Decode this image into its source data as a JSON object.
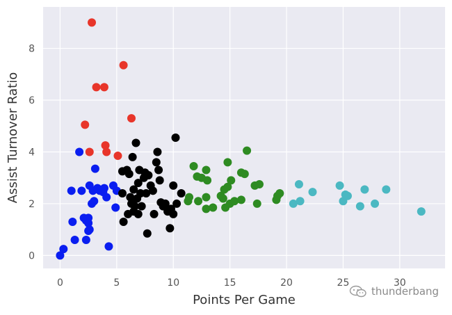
{
  "chart_data": {
    "type": "scatter",
    "xlabel": "Points Per Game",
    "ylabel": "Assist Turnover Ratio",
    "xlim": [
      -1.5,
      34
    ],
    "ylim": [
      -0.5,
      9.6
    ],
    "xticks": [
      0,
      5,
      10,
      15,
      20,
      25,
      30
    ],
    "yticks": [
      0,
      2,
      4,
      6,
      8
    ],
    "grid": true,
    "series": [
      {
        "color": "#0a1ef0",
        "points": [
          [
            0.0,
            0.0
          ],
          [
            0.3,
            0.25
          ],
          [
            1.0,
            2.5
          ],
          [
            1.1,
            1.3
          ],
          [
            1.3,
            0.6
          ],
          [
            1.7,
            4.0
          ],
          [
            1.9,
            2.5
          ],
          [
            2.1,
            1.45
          ],
          [
            2.3,
            1.35
          ],
          [
            2.3,
            0.6
          ],
          [
            2.5,
            1.45
          ],
          [
            2.5,
            1.25
          ],
          [
            2.5,
            0.95
          ],
          [
            2.6,
            2.7
          ],
          [
            2.6,
            1.0
          ],
          [
            2.8,
            2.0
          ],
          [
            2.9,
            2.5
          ],
          [
            3.0,
            2.1
          ],
          [
            3.1,
            3.35
          ],
          [
            3.3,
            2.6
          ],
          [
            3.5,
            2.5
          ],
          [
            3.8,
            2.45
          ],
          [
            3.9,
            2.6
          ],
          [
            4.1,
            2.25
          ],
          [
            4.3,
            0.35
          ],
          [
            4.7,
            2.7
          ],
          [
            4.9,
            1.85
          ],
          [
            5.0,
            2.5
          ]
        ]
      },
      {
        "color": "#e8352a",
        "points": [
          [
            2.8,
            9.0
          ],
          [
            2.2,
            5.05
          ],
          [
            2.6,
            4.0
          ],
          [
            3.2,
            6.5
          ],
          [
            3.9,
            6.5
          ],
          [
            4.0,
            4.25
          ],
          [
            4.1,
            4.0
          ],
          [
            5.1,
            3.85
          ],
          [
            5.6,
            7.35
          ],
          [
            6.3,
            5.3
          ]
        ]
      },
      {
        "color": "#000000",
        "points": [
          [
            5.5,
            3.25
          ],
          [
            5.5,
            2.4
          ],
          [
            5.6,
            1.3
          ],
          [
            5.9,
            3.3
          ],
          [
            6.0,
            1.6
          ],
          [
            6.1,
            3.15
          ],
          [
            6.2,
            2.25
          ],
          [
            6.3,
            2.0
          ],
          [
            6.4,
            3.8
          ],
          [
            6.5,
            1.7
          ],
          [
            6.5,
            2.55
          ],
          [
            6.6,
            1.9
          ],
          [
            6.7,
            4.35
          ],
          [
            6.8,
            2.2
          ],
          [
            6.9,
            2.8
          ],
          [
            6.9,
            1.6
          ],
          [
            7.0,
            3.3
          ],
          [
            7.1,
            2.4
          ],
          [
            7.2,
            1.9
          ],
          [
            7.4,
            3.0
          ],
          [
            7.5,
            3.2
          ],
          [
            7.6,
            2.4
          ],
          [
            7.7,
            0.85
          ],
          [
            7.8,
            3.1
          ],
          [
            8.0,
            2.7
          ],
          [
            8.2,
            2.5
          ],
          [
            8.3,
            1.6
          ],
          [
            8.5,
            3.6
          ],
          [
            8.6,
            4.0
          ],
          [
            8.7,
            3.3
          ],
          [
            8.8,
            2.9
          ],
          [
            8.9,
            2.05
          ],
          [
            9.1,
            1.9
          ],
          [
            9.3,
            2.0
          ],
          [
            9.5,
            1.7
          ],
          [
            9.7,
            1.05
          ],
          [
            9.8,
            1.8
          ],
          [
            10.0,
            2.7
          ],
          [
            10.0,
            1.6
          ],
          [
            10.2,
            4.55
          ],
          [
            10.3,
            2.0
          ],
          [
            10.7,
            2.4
          ]
        ]
      },
      {
        "color": "#2e8b22",
        "points": [
          [
            11.3,
            2.1
          ],
          [
            11.4,
            2.25
          ],
          [
            11.8,
            3.45
          ],
          [
            12.1,
            3.05
          ],
          [
            12.2,
            2.1
          ],
          [
            12.5,
            3.0
          ],
          [
            12.9,
            3.3
          ],
          [
            12.9,
            2.25
          ],
          [
            12.9,
            1.8
          ],
          [
            13.0,
            2.9
          ],
          [
            13.5,
            1.85
          ],
          [
            14.2,
            2.3
          ],
          [
            14.4,
            2.2
          ],
          [
            14.5,
            2.55
          ],
          [
            14.6,
            1.85
          ],
          [
            14.8,
            2.65
          ],
          [
            14.8,
            3.6
          ],
          [
            15.0,
            2.0
          ],
          [
            15.1,
            2.9
          ],
          [
            15.4,
            2.1
          ],
          [
            16.0,
            2.15
          ],
          [
            16.0,
            3.2
          ],
          [
            16.3,
            3.15
          ],
          [
            16.5,
            4.05
          ],
          [
            17.2,
            2.7
          ],
          [
            17.4,
            2.0
          ],
          [
            17.6,
            2.75
          ],
          [
            19.1,
            2.15
          ],
          [
            19.2,
            2.3
          ],
          [
            19.4,
            2.4
          ]
        ]
      },
      {
        "color": "#4bb8c2",
        "points": [
          [
            20.6,
            2.0
          ],
          [
            21.1,
            2.75
          ],
          [
            21.2,
            2.1
          ],
          [
            22.3,
            2.45
          ],
          [
            24.7,
            2.7
          ],
          [
            25.0,
            2.1
          ],
          [
            25.2,
            2.35
          ],
          [
            25.4,
            2.3
          ],
          [
            26.5,
            1.9
          ],
          [
            26.9,
            2.55
          ],
          [
            27.8,
            2.0
          ],
          [
            28.8,
            2.55
          ],
          [
            31.9,
            1.7
          ]
        ]
      }
    ]
  },
  "watermark": {
    "text": "thunderbang",
    "icon": "wechat-icon"
  }
}
